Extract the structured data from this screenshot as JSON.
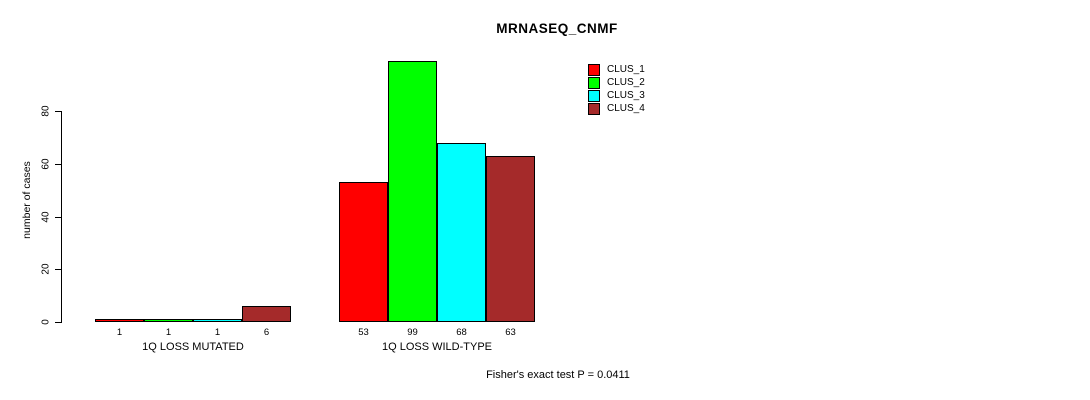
{
  "title": "MRNASEQ_CNMF",
  "footer": "Fisher's exact test P = 0.0411",
  "chart_data": {
    "type": "bar",
    "title": "MRNASEQ_CNMF",
    "xlabel": "",
    "ylabel": "number of cases",
    "yticks": [
      0,
      20,
      40,
      60,
      80
    ],
    "ylim": [
      0,
      99
    ],
    "grid": false,
    "legend_position": "top-right",
    "categories": [
      "1Q LOSS MUTATED",
      "1Q LOSS WILD-TYPE"
    ],
    "series": [
      {
        "name": "CLUS_1",
        "color": "#ff0000",
        "values": [
          1,
          53
        ]
      },
      {
        "name": "CLUS_2",
        "color": "#00ff00",
        "values": [
          1,
          99
        ]
      },
      {
        "name": "CLUS_3",
        "color": "#00ffff",
        "values": [
          1,
          68
        ]
      },
      {
        "name": "CLUS_4",
        "color": "#a52a2a",
        "values": [
          6,
          63
        ]
      }
    ],
    "bar_value_labels": [
      [
        1,
        1,
        1,
        6
      ],
      [
        53,
        99,
        68,
        63
      ]
    ],
    "annotation": "Fisher's exact test P = 0.0411"
  }
}
